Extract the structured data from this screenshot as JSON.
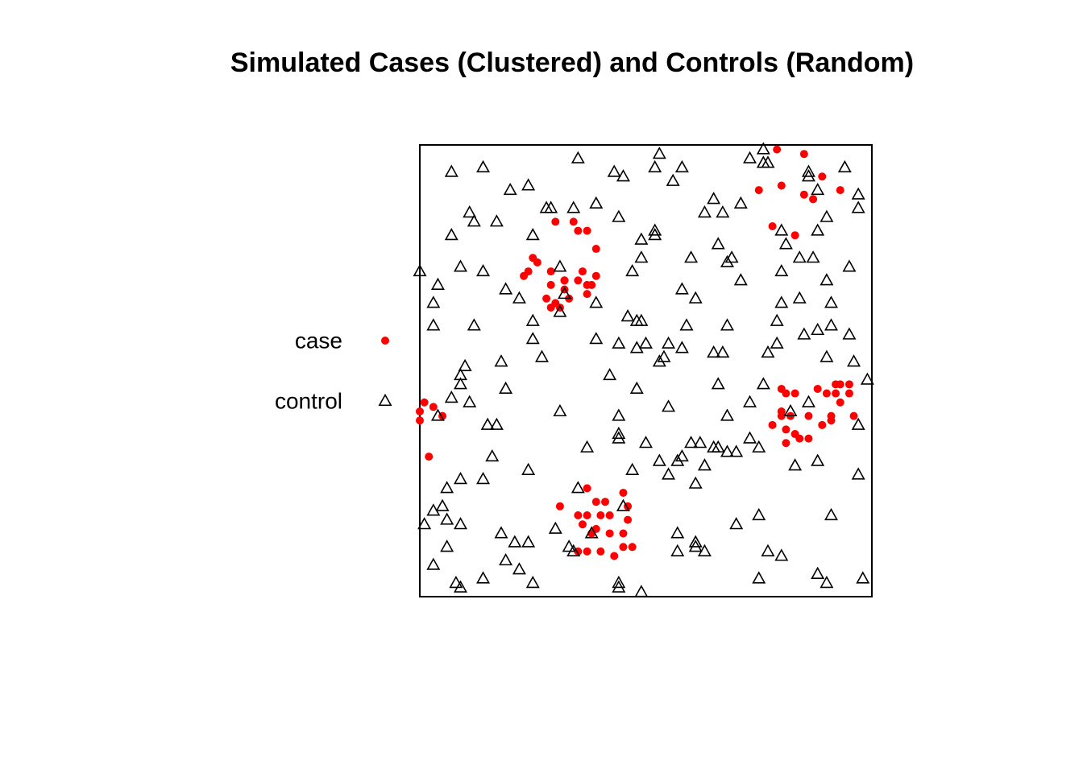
{
  "chart_data": {
    "type": "scatter",
    "title": "Simulated Cases (Clustered) and Controls (Random)",
    "xlim": [
      0,
      1
    ],
    "ylim": [
      0,
      1
    ],
    "legend": "left",
    "frame": true,
    "series": [
      {
        "name": "case",
        "color": "#ff0000",
        "marker": "circle",
        "x": [
          0.79,
          0.85,
          0.89,
          0.75,
          0.8,
          0.85,
          0.87,
          0.93,
          0.78,
          0.83,
          0.3,
          0.34,
          0.37,
          0.35,
          0.39,
          0.25,
          0.26,
          0.24,
          0.23,
          0.29,
          0.32,
          0.36,
          0.39,
          0.35,
          0.37,
          0.38,
          0.29,
          0.32,
          0.37,
          0.28,
          0.3,
          0.33,
          0.29,
          0.31,
          0.32,
          0.01,
          0.03,
          0.0,
          0.05,
          0.0,
          0.02,
          0.8,
          0.81,
          0.83,
          0.88,
          0.9,
          0.92,
          0.93,
          0.95,
          0.95,
          0.92,
          0.93,
          0.8,
          0.82,
          0.8,
          0.78,
          0.81,
          0.86,
          0.89,
          0.91,
          0.96,
          0.91,
          0.83,
          0.84,
          0.86,
          0.81,
          0.37,
          0.45,
          0.46,
          0.31,
          0.41,
          0.39,
          0.37,
          0.35,
          0.4,
          0.42,
          0.46,
          0.36,
          0.39,
          0.38,
          0.42,
          0.45,
          0.47,
          0.45,
          0.43,
          0.35,
          0.37,
          0.4
        ],
        "y": [
          0.99,
          0.98,
          0.93,
          0.9,
          0.91,
          0.89,
          0.88,
          0.9,
          0.82,
          0.8,
          0.83,
          0.83,
          0.81,
          0.81,
          0.77,
          0.75,
          0.74,
          0.72,
          0.71,
          0.72,
          0.7,
          0.72,
          0.71,
          0.7,
          0.69,
          0.69,
          0.69,
          0.68,
          0.67,
          0.66,
          0.65,
          0.66,
          0.64,
          0.64,
          0.7,
          0.43,
          0.42,
          0.41,
          0.4,
          0.39,
          0.31,
          0.46,
          0.45,
          0.45,
          0.46,
          0.45,
          0.47,
          0.47,
          0.47,
          0.45,
          0.45,
          0.43,
          0.41,
          0.4,
          0.4,
          0.38,
          0.37,
          0.4,
          0.38,
          0.4,
          0.4,
          0.39,
          0.36,
          0.35,
          0.35,
          0.34,
          0.24,
          0.23,
          0.2,
          0.2,
          0.21,
          0.21,
          0.18,
          0.18,
          0.18,
          0.18,
          0.17,
          0.16,
          0.15,
          0.14,
          0.14,
          0.14,
          0.11,
          0.11,
          0.09,
          0.1,
          0.1,
          0.1
        ]
      },
      {
        "name": "control",
        "color": "#000000",
        "marker": "triangle",
        "x": [
          0.07,
          0.14,
          0.35,
          0.53,
          0.43,
          0.45,
          0.52,
          0.58,
          0.56,
          0.2,
          0.24,
          0.73,
          0.76,
          0.76,
          0.77,
          0.86,
          0.86,
          0.94,
          0.97,
          0.97,
          0.88,
          0.9,
          0.88,
          0.71,
          0.67,
          0.65,
          0.63,
          0.39,
          0.34,
          0.28,
          0.29,
          0.11,
          0.12,
          0.17,
          0.44,
          0.52,
          0.52,
          0.49,
          0.25,
          0.07,
          0.8,
          0.81,
          0.84,
          0.87,
          0.95,
          0.66,
          0.69,
          0.68,
          0.6,
          0.49,
          0.47,
          0.31,
          0.14,
          0.09,
          0.0,
          0.04,
          0.03,
          0.03,
          0.12,
          0.19,
          0.22,
          0.32,
          0.39,
          0.31,
          0.25,
          0.25,
          0.27,
          0.18,
          0.19,
          0.1,
          0.09,
          0.09,
          0.07,
          0.11,
          0.04,
          0.15,
          0.17,
          0.16,
          0.06,
          0.09,
          0.14,
          0.24,
          0.05,
          0.03,
          0.01,
          0.06,
          0.09,
          0.18,
          0.21,
          0.24,
          0.06,
          0.03,
          0.19,
          0.22,
          0.25,
          0.08,
          0.09,
          0.14,
          0.3,
          0.35,
          0.33,
          0.34,
          0.38,
          0.44,
          0.44,
          0.49,
          0.45,
          0.47,
          0.44,
          0.44,
          0.44,
          0.37,
          0.31,
          0.42,
          0.48,
          0.39,
          0.44,
          0.5,
          0.48,
          0.53,
          0.54,
          0.55,
          0.58,
          0.46,
          0.48,
          0.49,
          0.59,
          0.58,
          0.61,
          0.71,
          0.8,
          0.8,
          0.84,
          0.9,
          0.91,
          0.79,
          0.88,
          0.85,
          0.91,
          0.95,
          0.9,
          0.96,
          0.99,
          0.79,
          0.77,
          0.68,
          0.67,
          0.65,
          0.66,
          0.73,
          0.76,
          0.86,
          0.82,
          0.68,
          0.55,
          0.53,
          0.55,
          0.57,
          0.58,
          0.6,
          0.62,
          0.63,
          0.65,
          0.66,
          0.68,
          0.7,
          0.73,
          0.75,
          0.61,
          0.5,
          0.83,
          0.88,
          0.97,
          0.97,
          0.91,
          0.75,
          0.7,
          0.57,
          0.57,
          0.61,
          0.61,
          0.63,
          0.77,
          0.8,
          0.75,
          0.88,
          0.9,
          0.98
        ],
        "y": [
          0.94,
          0.95,
          0.97,
          0.98,
          0.94,
          0.93,
          0.95,
          0.95,
          0.92,
          0.9,
          0.91,
          0.97,
          0.99,
          0.96,
          0.96,
          0.94,
          0.93,
          0.95,
          0.89,
          0.86,
          0.9,
          0.84,
          0.81,
          0.87,
          0.85,
          0.88,
          0.85,
          0.87,
          0.86,
          0.86,
          0.86,
          0.85,
          0.83,
          0.83,
          0.84,
          0.81,
          0.8,
          0.79,
          0.8,
          0.8,
          0.81,
          0.78,
          0.75,
          0.75,
          0.73,
          0.78,
          0.75,
          0.74,
          0.75,
          0.75,
          0.72,
          0.73,
          0.72,
          0.73,
          0.72,
          0.69,
          0.65,
          0.6,
          0.6,
          0.68,
          0.66,
          0.67,
          0.65,
          0.63,
          0.61,
          0.57,
          0.53,
          0.52,
          0.46,
          0.51,
          0.49,
          0.47,
          0.44,
          0.43,
          0.4,
          0.38,
          0.38,
          0.31,
          0.24,
          0.26,
          0.26,
          0.28,
          0.2,
          0.19,
          0.16,
          0.17,
          0.16,
          0.14,
          0.12,
          0.12,
          0.11,
          0.07,
          0.08,
          0.06,
          0.03,
          0.03,
          0.02,
          0.04,
          0.15,
          0.24,
          0.11,
          0.1,
          0.14,
          0.02,
          0.03,
          0.01,
          0.2,
          0.28,
          0.36,
          0.4,
          0.35,
          0.33,
          0.41,
          0.49,
          0.46,
          0.57,
          0.56,
          0.56,
          0.55,
          0.52,
          0.53,
          0.56,
          0.55,
          0.62,
          0.61,
          0.61,
          0.6,
          0.68,
          0.66,
          0.7,
          0.72,
          0.65,
          0.66,
          0.7,
          0.65,
          0.61,
          0.59,
          0.58,
          0.6,
          0.58,
          0.53,
          0.52,
          0.48,
          0.56,
          0.54,
          0.6,
          0.54,
          0.54,
          0.47,
          0.43,
          0.47,
          0.43,
          0.41,
          0.4,
          0.42,
          0.3,
          0.27,
          0.3,
          0.31,
          0.34,
          0.34,
          0.29,
          0.33,
          0.33,
          0.32,
          0.32,
          0.35,
          0.33,
          0.25,
          0.34,
          0.29,
          0.3,
          0.27,
          0.38,
          0.18,
          0.18,
          0.16,
          0.14,
          0.1,
          0.12,
          0.11,
          0.1,
          0.1,
          0.09,
          0.04,
          0.05,
          0.03,
          0.04
        ]
      }
    ]
  }
}
